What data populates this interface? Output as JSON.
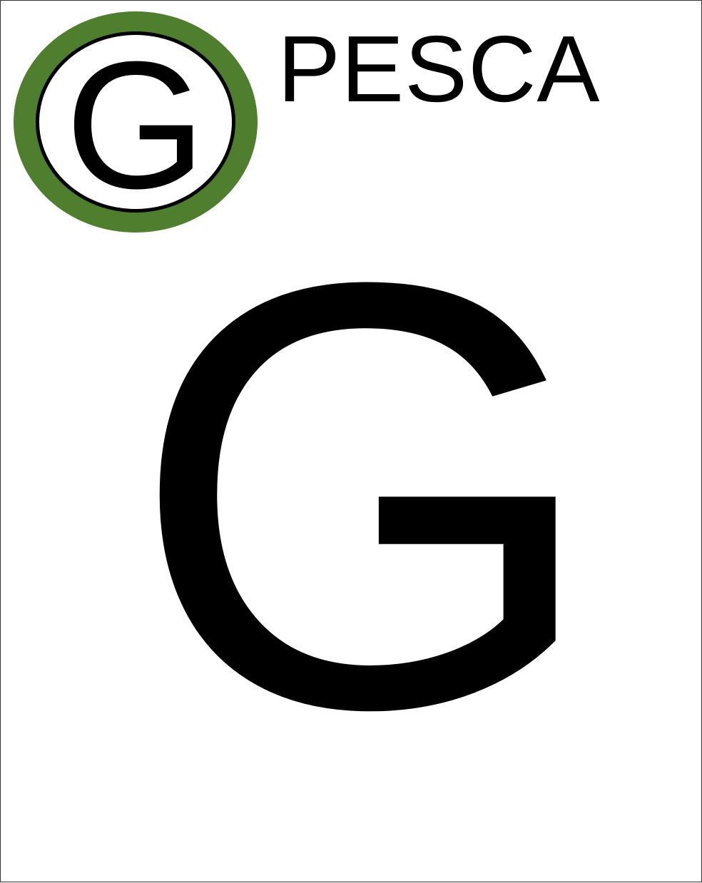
{
  "badge": {
    "letter": "G",
    "ring_color": "#4f7f2e",
    "inner_color": "#ffffff",
    "outline_color": "#000000"
  },
  "title": "PESCA",
  "main_letter": "G"
}
